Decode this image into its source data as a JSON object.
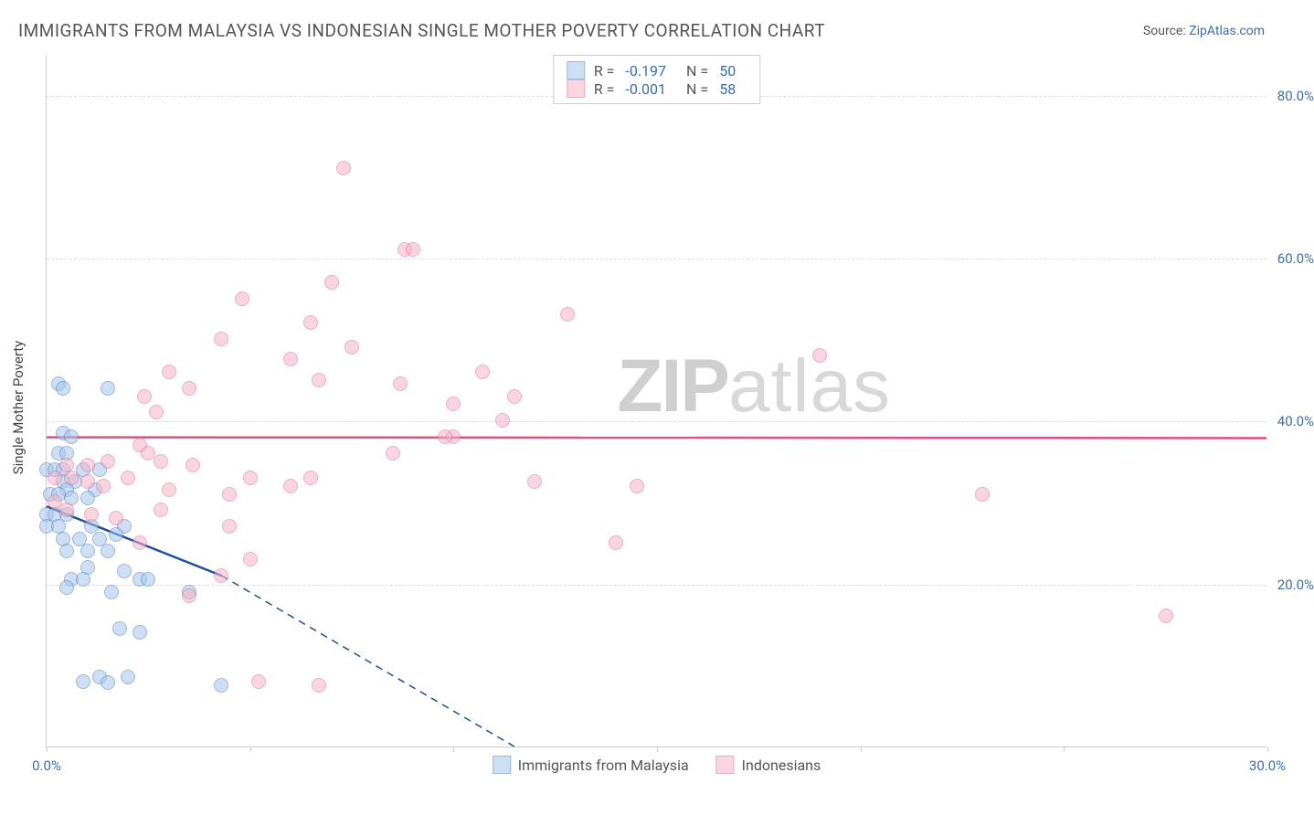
{
  "title": "IMMIGRANTS FROM MALAYSIA VS INDONESIAN SINGLE MOTHER POVERTY CORRELATION CHART",
  "source_prefix": "Source: ",
  "source_link": "ZipAtlas.com",
  "y_label": "Single Mother Poverty",
  "watermark_zip": "ZIP",
  "watermark_atlas": "atlas",
  "chart": {
    "type": "scatter",
    "xlim": [
      0,
      30
    ],
    "ylim": [
      0,
      85
    ],
    "y_ticks": [
      20,
      40,
      60,
      80
    ],
    "y_tick_labels": [
      "20.0%",
      "40.0%",
      "60.0%",
      "80.0%"
    ],
    "x_ticks": [
      0,
      5,
      10,
      15,
      20,
      25,
      30
    ],
    "x_tick_labels_shown": {
      "0": "0.0%",
      "30": "30.0%"
    },
    "background_color": "#ffffff",
    "grid_color": "#dddddd",
    "border_color": "#cccccc",
    "tick_label_color": "#3b6db3",
    "tick_label_fontsize": 15,
    "marker_radius": 8,
    "marker_stroke_width": 1,
    "series": [
      {
        "name": "Immigrants from Malaysia",
        "fill": "#a7c5ea",
        "fill_opacity": 0.55,
        "stroke": "#4b7fc4",
        "R": "-0.197",
        "N": "50",
        "trend": {
          "color": "#1e4f9b",
          "width": 2.5,
          "solid": {
            "x1": 0,
            "y1": 29.5,
            "x2": 4.3,
            "y2": 21
          },
          "dashed": {
            "x1": 4.3,
            "y1": 21,
            "x2": 11.5,
            "y2": 0
          }
        },
        "points": [
          [
            0.3,
            44.5
          ],
          [
            0.4,
            44
          ],
          [
            1.5,
            44
          ],
          [
            0.4,
            38.5
          ],
          [
            0.6,
            38
          ],
          [
            0.3,
            36
          ],
          [
            0.5,
            36
          ],
          [
            0.0,
            34
          ],
          [
            0.2,
            34
          ],
          [
            0.4,
            34
          ],
          [
            0.9,
            34
          ],
          [
            1.3,
            34
          ],
          [
            0.4,
            32.5
          ],
          [
            0.7,
            32.5
          ],
          [
            0.5,
            31.5
          ],
          [
            1.2,
            31.5
          ],
          [
            0.1,
            31
          ],
          [
            0.3,
            31
          ],
          [
            0.6,
            30.5
          ],
          [
            1.0,
            30.5
          ],
          [
            0.0,
            28.5
          ],
          [
            0.2,
            28.5
          ],
          [
            0.5,
            28.5
          ],
          [
            0.0,
            27
          ],
          [
            0.3,
            27
          ],
          [
            1.1,
            27
          ],
          [
            1.9,
            27
          ],
          [
            0.4,
            25.5
          ],
          [
            0.8,
            25.5
          ],
          [
            1.3,
            25.5
          ],
          [
            1.7,
            26
          ],
          [
            0.5,
            24
          ],
          [
            1.0,
            24
          ],
          [
            1.5,
            24
          ],
          [
            1.0,
            22
          ],
          [
            1.9,
            21.5
          ],
          [
            0.6,
            20.5
          ],
          [
            0.9,
            20.5
          ],
          [
            2.3,
            20.5
          ],
          [
            2.5,
            20.5
          ],
          [
            1.6,
            19
          ],
          [
            3.5,
            19
          ],
          [
            1.8,
            14.5
          ],
          [
            1.3,
            8.5
          ],
          [
            2.0,
            8.5
          ],
          [
            0.9,
            8
          ],
          [
            1.5,
            7.8
          ],
          [
            4.3,
            7.5
          ],
          [
            2.3,
            14
          ],
          [
            0.5,
            19.5
          ]
        ]
      },
      {
        "name": "Indonesians",
        "fill": "#f4b3c6",
        "fill_opacity": 0.55,
        "stroke": "#e16f97",
        "R": "-0.001",
        "N": "58",
        "trend": {
          "color": "#e34b82",
          "width": 2.5,
          "solid": {
            "x1": 0,
            "y1": 38,
            "x2": 30,
            "y2": 37.9
          }
        },
        "points": [
          [
            7.3,
            71
          ],
          [
            8.8,
            61
          ],
          [
            9.0,
            61
          ],
          [
            7.0,
            57
          ],
          [
            4.8,
            55
          ],
          [
            6.5,
            52
          ],
          [
            12.8,
            53
          ],
          [
            4.3,
            50
          ],
          [
            7.5,
            49
          ],
          [
            6.0,
            47.5
          ],
          [
            19.0,
            48
          ],
          [
            3.0,
            46
          ],
          [
            6.7,
            45
          ],
          [
            8.7,
            44.5
          ],
          [
            10.7,
            46
          ],
          [
            3.5,
            44
          ],
          [
            2.4,
            43
          ],
          [
            2.7,
            41
          ],
          [
            10.0,
            42
          ],
          [
            11.5,
            43
          ],
          [
            11.2,
            40
          ],
          [
            10.0,
            38
          ],
          [
            9.8,
            38
          ],
          [
            2.3,
            37
          ],
          [
            2.5,
            36
          ],
          [
            1.5,
            35
          ],
          [
            2.8,
            35
          ],
          [
            3.6,
            34.5
          ],
          [
            5.0,
            33
          ],
          [
            6.5,
            33
          ],
          [
            6.0,
            32
          ],
          [
            12.0,
            32.5
          ],
          [
            14.5,
            32
          ],
          [
            4.5,
            31
          ],
          [
            3.0,
            31.5
          ],
          [
            2.0,
            33
          ],
          [
            1.4,
            32
          ],
          [
            1.0,
            32.5
          ],
          [
            0.6,
            33
          ],
          [
            0.2,
            33
          ],
          [
            0.2,
            30
          ],
          [
            0.5,
            29
          ],
          [
            1.1,
            28.5
          ],
          [
            1.7,
            28
          ],
          [
            2.8,
            29
          ],
          [
            23.0,
            31
          ],
          [
            4.5,
            27
          ],
          [
            2.3,
            25
          ],
          [
            5.0,
            23
          ],
          [
            14.0,
            25
          ],
          [
            3.5,
            18.5
          ],
          [
            27.5,
            16
          ],
          [
            5.2,
            8
          ],
          [
            6.7,
            7.5
          ],
          [
            4.3,
            21
          ],
          [
            0.5,
            34.5
          ],
          [
            1.0,
            34.5
          ],
          [
            8.5,
            36
          ]
        ]
      }
    ]
  },
  "legend_top_labels": {
    "R_prefix": "R = ",
    "N_prefix": "N = "
  },
  "legend_bottom": [
    "Immigrants from Malaysia",
    "Indonesians"
  ]
}
